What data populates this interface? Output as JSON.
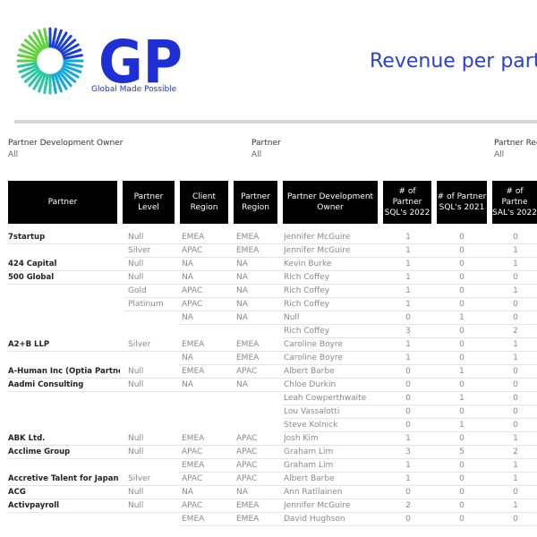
{
  "logo": {
    "letters": "GP",
    "tagline": "Global Made Possible"
  },
  "title": "Revenue per part",
  "filters": [
    {
      "label": "Partner Development Owner",
      "value": "All"
    },
    {
      "label": "Partner",
      "value": "All"
    },
    {
      "label": "Partner Reg",
      "value": "All"
    }
  ],
  "columns": [
    "Partner",
    "Partner\nLevel",
    "Client\nRegion",
    "Partner\nRegion",
    "Partner Development\nOwner",
    "# of Partner\nSQL's 2022",
    "# of Partner\nSQL's 2021",
    "# of Partne\nSAL's 2022"
  ],
  "rows": [
    [
      "7startup",
      "Null",
      "EMEA",
      "EMEA",
      "Jennifer McGuire",
      "1",
      "0",
      "0"
    ],
    [
      "",
      "Silver",
      "APAC",
      "EMEA",
      "Jennifer McGuire",
      "1",
      "0",
      "1"
    ],
    [
      "424 Capital",
      "Null",
      "NA",
      "NA",
      "Kevin Burke",
      "1",
      "0",
      "1"
    ],
    [
      "500 Global",
      "Null",
      "NA",
      "NA",
      "Rich Coffey",
      "1",
      "0",
      "0"
    ],
    [
      "",
      "Gold",
      "APAC",
      "NA",
      "Rich Coffey",
      "1",
      "0",
      "1"
    ],
    [
      "",
      "Platinum",
      "APAC",
      "NA",
      "Rich Coffey",
      "1",
      "0",
      "0"
    ],
    [
      "",
      "",
      "NA",
      "NA",
      "Null",
      "0",
      "1",
      "0"
    ],
    [
      "",
      "",
      "",
      "",
      "Rich Coffey",
      "3",
      "0",
      "2"
    ],
    [
      "A2+B LLP",
      "Silver",
      "EMEA",
      "EMEA",
      "Caroline Boyre",
      "1",
      "0",
      "1"
    ],
    [
      "",
      "",
      "NA",
      "EMEA",
      "Caroline Boyre",
      "1",
      "0",
      "1"
    ],
    [
      "A-Human Inc (Optia Partner..",
      "Null",
      "EMEA",
      "APAC",
      "Albert Barbe",
      "0",
      "1",
      "0"
    ],
    [
      "Aadmi Consulting",
      "Null",
      "NA",
      "NA",
      "Chloe Durkin",
      "0",
      "0",
      "0"
    ],
    [
      "",
      "",
      "",
      "",
      "Leah Cowperthwaite",
      "0",
      "1",
      "0"
    ],
    [
      "",
      "",
      "",
      "",
      "Lou Vassalotti",
      "0",
      "0",
      "0"
    ],
    [
      "",
      "",
      "",
      "",
      "Steve Kolnick",
      "0",
      "1",
      "0"
    ],
    [
      "ABK Ltd.",
      "Null",
      "EMEA",
      "APAC",
      "Josh Kim",
      "1",
      "0",
      "1"
    ],
    [
      "Acclime Group",
      "Null",
      "APAC",
      "APAC",
      "Graham Lim",
      "3",
      "5",
      "2"
    ],
    [
      "",
      "",
      "EMEA",
      "APAC",
      "Graham Lim",
      "1",
      "0",
      "1"
    ],
    [
      "Accretive Talent for Japan K..",
      "Silver",
      "APAC",
      "APAC",
      "Albert Barbe",
      "1",
      "0",
      "1"
    ],
    [
      "ACG",
      "Null",
      "NA",
      "NA",
      "Ann Ratilainen",
      "0",
      "0",
      "0"
    ],
    [
      "Activpayroll",
      "Null",
      "APAC",
      "EMEA",
      "Jennifer McGuire",
      "2",
      "0",
      "1"
    ],
    [
      "",
      "",
      "EMEA",
      "EMEA",
      "David Hughson",
      "0",
      "0",
      "0"
    ]
  ]
}
